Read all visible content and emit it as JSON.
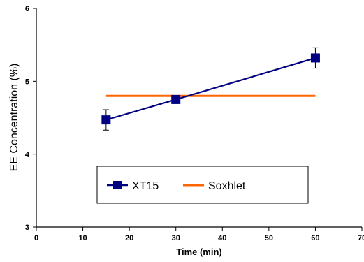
{
  "chart_data": {
    "type": "line",
    "title": "",
    "xlabel": "Time (min)",
    "ylabel": "EE Concentration (%)",
    "xlim": [
      0,
      70
    ],
    "ylim": [
      3,
      6
    ],
    "xticks": [
      "0",
      "10",
      "20",
      "30",
      "40",
      "50",
      "60",
      "70"
    ],
    "yticks": [
      "3",
      "4",
      "5",
      "6"
    ],
    "grid": false,
    "legend_position": "bottom-center",
    "series": [
      {
        "name": "XT15",
        "color": "#000080",
        "marker": "square",
        "x": [
          15,
          30,
          60
        ],
        "y": [
          4.47,
          4.75,
          5.32
        ],
        "error": [
          0.14,
          0,
          0.14
        ]
      },
      {
        "name": "Soxhlet",
        "color": "#ff6600",
        "marker": "dash",
        "x": [
          15,
          30,
          60
        ],
        "y": [
          4.8,
          4.8,
          4.8
        ]
      }
    ]
  }
}
